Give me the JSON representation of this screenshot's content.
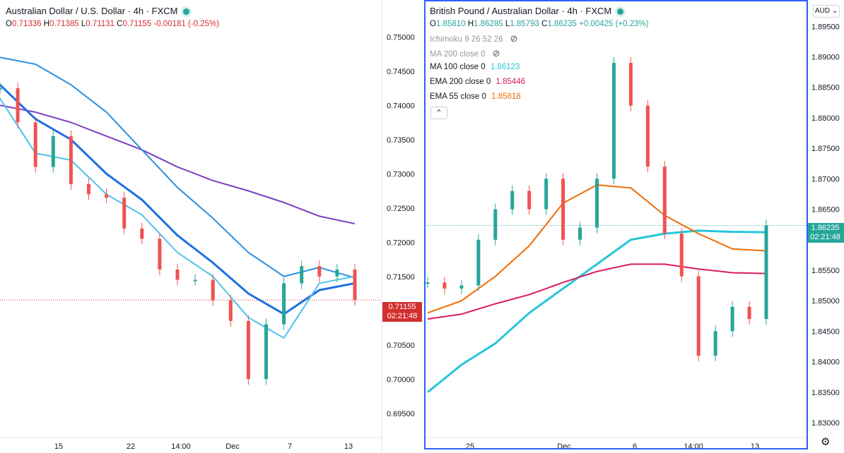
{
  "left": {
    "title": "Australian Dollar / U.S. Dollar · 4h · FXCM",
    "ohlc": {
      "o_label": "O",
      "o": "0.71336",
      "h_label": "H",
      "h": "0.71385",
      "l_label": "L",
      "l": "0.71131",
      "c_label": "C",
      "c": "0.71155",
      "chg": "-0.00181 (-0.25%)"
    },
    "last_price": "0.71155",
    "countdown": "02:21:48",
    "price_color": "#d32f2f"
  },
  "right": {
    "title": "British Pound / Australian Dollar · 4h · FXCM",
    "ohlc": {
      "o_label": "O",
      "o": "1.85810",
      "h_label": "H",
      "h": "1.86285",
      "l_label": "L",
      "l": "1.85793",
      "c_label": "C",
      "c": "1.86235",
      "chg": "+0.00425 (+0.23%)"
    },
    "indicators": [
      {
        "label": "Ichimoku 9 26 52 26",
        "value": "",
        "color": "#9598a1",
        "hidden": true
      },
      {
        "label": "MA 200 close 0",
        "value": "",
        "color": "#9598a1",
        "hidden": true
      },
      {
        "label": "MA 100 close 0",
        "value": "1.86123",
        "color": "#26c6da",
        "hidden": false
      },
      {
        "label": "EMA 200 close 0",
        "value": "1.85446",
        "color": "#d81b60",
        "hidden": false
      },
      {
        "label": "EMA 55 close 0",
        "value": "1.85818",
        "color": "#ef6c00",
        "hidden": false
      }
    ],
    "last_price": "1.86235",
    "countdown": "02:21:48",
    "price_color": "#26a69a",
    "currency": "AUD",
    "collapse_glyph": "^"
  },
  "chart_data": [
    {
      "type": "line",
      "title": "Australian Dollar / U.S. Dollar · 4h · FXCM",
      "ylim": [
        0.6925,
        0.7525
      ],
      "yticks": [
        "0.75000",
        "0.74500",
        "0.74000",
        "0.73500",
        "0.73000",
        "0.72500",
        "0.72000",
        "0.71500",
        "0.71000",
        "0.70500",
        "0.70000",
        "0.69500"
      ],
      "xticks": [
        "15",
        "22",
        "14:00",
        "Dec",
        "7",
        "13"
      ],
      "series": [
        {
          "color": "#7b3fc0",
          "x": [
            0,
            0.1,
            0.2,
            0.3,
            0.4,
            0.5,
            0.6,
            0.7,
            0.8,
            0.9,
            1.0
          ],
          "values": [
            0.74,
            0.739,
            0.7375,
            0.7355,
            0.7335,
            0.731,
            0.729,
            0.7275,
            0.7258,
            0.7238,
            0.7227
          ]
        },
        {
          "color": "#2b8fe0",
          "x": [
            0,
            0.1,
            0.2,
            0.3,
            0.4,
            0.5,
            0.6,
            0.7,
            0.8,
            0.9,
            1.0
          ],
          "values": [
            0.747,
            0.746,
            0.743,
            0.739,
            0.7335,
            0.728,
            0.7235,
            0.7185,
            0.715,
            0.7163,
            0.7148
          ]
        },
        {
          "color": "#1e6fe0",
          "x": [
            0,
            0.1,
            0.2,
            0.3,
            0.4,
            0.5,
            0.6,
            0.7,
            0.8,
            0.9,
            1.0
          ],
          "values": [
            0.743,
            0.738,
            0.735,
            0.73,
            0.7262,
            0.721,
            0.717,
            0.7125,
            0.7095,
            0.713,
            0.714
          ]
        },
        {
          "color": "#4fc3e8",
          "x": [
            0,
            0.1,
            0.2,
            0.3,
            0.4,
            0.5,
            0.6,
            0.7,
            0.8,
            0.9,
            1.0
          ],
          "values": [
            0.741,
            0.733,
            0.732,
            0.727,
            0.724,
            0.7185,
            0.715,
            0.709,
            0.706,
            0.714,
            0.715
          ]
        },
        {
          "color": "#26a69a",
          "x": [
            0,
            0.05,
            0.1,
            0.15,
            0.2,
            0.25,
            0.3,
            0.35,
            0.4,
            0.45,
            0.5,
            0.55,
            0.6,
            0.65,
            0.7,
            0.75,
            0.8,
            0.85,
            0.9,
            0.95,
            1.0
          ],
          "values": [
            0.7425,
            0.7375,
            0.731,
            0.7355,
            0.7285,
            0.727,
            0.7265,
            0.722,
            0.7205,
            0.716,
            0.7145,
            0.7145,
            0.7115,
            0.7085,
            0.7,
            0.708,
            0.714,
            0.7165,
            0.715,
            0.716,
            0.71155
          ]
        }
      ]
    },
    {
      "type": "line",
      "title": "British Pound / Australian Dollar · 4h · FXCM",
      "ylim": [
        1.8285,
        1.8955
      ],
      "yticks": [
        "1.89500",
        "1.89000",
        "1.88500",
        "1.88000",
        "1.87500",
        "1.87000",
        "1.86500",
        "1.86000",
        "1.85500",
        "1.85000",
        "1.84500",
        "1.84000",
        "1.83500",
        "1.83000"
      ],
      "xticks": [
        "25",
        "Dec",
        "6",
        "14:00",
        "13"
      ],
      "series": [
        {
          "name": "MA 100 close 0",
          "color": "#26c6da",
          "x": [
            0,
            0.1,
            0.2,
            0.3,
            0.4,
            0.5,
            0.6,
            0.7,
            0.8,
            0.9,
            1.0
          ],
          "values": [
            1.835,
            1.8395,
            1.843,
            1.848,
            1.852,
            1.856,
            1.86,
            1.861,
            1.8615,
            1.8613,
            1.86123
          ]
        },
        {
          "name": "EMA 200 close 0",
          "color": "#d81b60",
          "x": [
            0,
            0.1,
            0.2,
            0.3,
            0.4,
            0.5,
            0.6,
            0.7,
            0.8,
            0.9,
            1.0
          ],
          "values": [
            1.847,
            1.8478,
            1.8495,
            1.851,
            1.853,
            1.8548,
            1.856,
            1.856,
            1.8552,
            1.8546,
            1.85446
          ]
        },
        {
          "name": "EMA 55 close 0",
          "color": "#ef6c00",
          "x": [
            0,
            0.1,
            0.2,
            0.3,
            0.4,
            0.5,
            0.6,
            0.7,
            0.8,
            0.9,
            1.0
          ],
          "values": [
            1.848,
            1.85,
            1.854,
            1.859,
            1.866,
            1.869,
            1.8685,
            1.864,
            1.861,
            1.8585,
            1.85818
          ]
        },
        {
          "color": "#26a69a",
          "x": [
            0,
            0.05,
            0.1,
            0.15,
            0.2,
            0.25,
            0.3,
            0.35,
            0.4,
            0.45,
            0.5,
            0.55,
            0.6,
            0.65,
            0.7,
            0.75,
            0.8,
            0.85,
            0.9,
            0.95,
            1.0
          ],
          "values": [
            1.853,
            1.852,
            1.8525,
            1.86,
            1.865,
            1.868,
            1.865,
            1.87,
            1.86,
            1.862,
            1.87,
            1.889,
            1.882,
            1.872,
            1.861,
            1.854,
            1.841,
            1.845,
            1.849,
            1.847,
            1.86235
          ]
        }
      ]
    }
  ]
}
